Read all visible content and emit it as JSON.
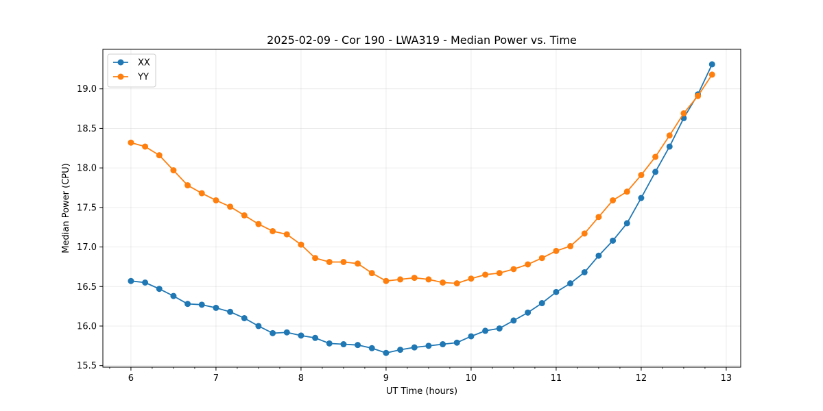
{
  "chart_data": {
    "type": "line",
    "title": "2025-02-09 - Cor 190 - LWA319 - Median Power vs. Time",
    "xlabel": "UT Time (hours)",
    "ylabel": "Median Power (CPU)",
    "xlim": [
      5.67,
      13.17
    ],
    "ylim": [
      15.48,
      19.5
    ],
    "grid": true,
    "legend_position": "top-left",
    "x_ticks": [
      6,
      7,
      8,
      9,
      10,
      11,
      12,
      13
    ],
    "x_tick_labels": [
      "6",
      "7",
      "8",
      "9",
      "10",
      "11",
      "12",
      "13"
    ],
    "y_ticks": [
      15.5,
      16.0,
      16.5,
      17.0,
      17.5,
      18.0,
      18.5,
      19.0
    ],
    "y_tick_labels": [
      "15.5",
      "16.0",
      "16.5",
      "17.0",
      "17.5",
      "18.0",
      "18.5",
      "19.0"
    ],
    "x": [
      6.0,
      6.1667,
      6.3333,
      6.5,
      6.6667,
      6.8333,
      7.0,
      7.1667,
      7.3333,
      7.5,
      7.6667,
      7.8333,
      8.0,
      8.1667,
      8.3333,
      8.5,
      8.6667,
      8.8333,
      9.0,
      9.1667,
      9.3333,
      9.5,
      9.6667,
      9.8333,
      10.0,
      10.1667,
      10.3333,
      10.5,
      10.6667,
      10.8333,
      11.0,
      11.1667,
      11.3333,
      11.5,
      11.6667,
      11.8333,
      12.0,
      12.1667,
      12.3333,
      12.5,
      12.6667,
      12.8333
    ],
    "series": [
      {
        "name": "XX",
        "color": "#1f77b4",
        "values": [
          16.57,
          16.55,
          16.47,
          16.38,
          16.28,
          16.27,
          16.23,
          16.18,
          16.1,
          16.0,
          15.91,
          15.92,
          15.88,
          15.85,
          15.78,
          15.77,
          15.76,
          15.72,
          15.66,
          15.7,
          15.73,
          15.75,
          15.77,
          15.79,
          15.87,
          15.94,
          15.97,
          16.07,
          16.17,
          16.29,
          16.43,
          16.54,
          16.68,
          16.89,
          17.08,
          17.3,
          17.62,
          17.95,
          18.27,
          18.63,
          18.93,
          19.31
        ]
      },
      {
        "name": "YY",
        "color": "#ff7f0e",
        "values": [
          18.32,
          18.27,
          18.16,
          17.97,
          17.78,
          17.68,
          17.59,
          17.51,
          17.4,
          17.29,
          17.2,
          17.16,
          17.03,
          16.86,
          16.81,
          16.81,
          16.79,
          16.67,
          16.57,
          16.59,
          16.61,
          16.59,
          16.55,
          16.54,
          16.6,
          16.65,
          16.67,
          16.72,
          16.78,
          16.86,
          16.95,
          17.01,
          17.17,
          17.38,
          17.59,
          17.7,
          17.91,
          18.14,
          18.41,
          18.69,
          18.91,
          19.18
        ]
      }
    ]
  }
}
